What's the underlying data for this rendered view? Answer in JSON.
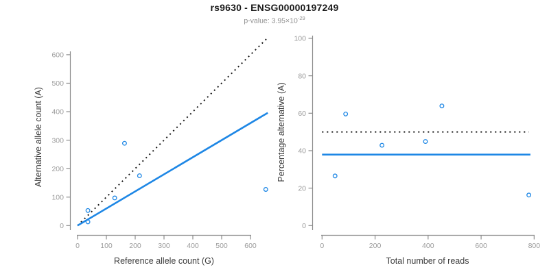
{
  "header": {
    "title": "rs9630 - ENSG00000197249",
    "subtitle_text": "p-value: 3.95×10",
    "subtitle_exponent": "-29"
  },
  "colors": {
    "accent_blue": "#1E87E5",
    "dotted_black": "#1A1A1A",
    "axis_gray": "#8C8C8C",
    "tick_label_gray": "#9B9B9B",
    "axis_title_dark": "#3A3A3A"
  },
  "chart_data": [
    {
      "type": "scatter",
      "panel": "left",
      "xlabel": "Reference allele count (G)",
      "ylabel": "Alternative allele count (A)",
      "xlim": [
        0,
        660
      ],
      "ylim": [
        0,
        660
      ],
      "xticks": [
        0,
        100,
        200,
        300,
        400,
        500,
        600
      ],
      "yticks": [
        0,
        100,
        200,
        300,
        400,
        500,
        600
      ],
      "grid": false,
      "point_color": "#1E87E5",
      "points": [
        {
          "x": 36,
          "y": 53
        },
        {
          "x": 36,
          "y": 13
        },
        {
          "x": 129,
          "y": 97
        },
        {
          "x": 163,
          "y": 289
        },
        {
          "x": 215,
          "y": 175
        },
        {
          "x": 653,
          "y": 127
        }
      ],
      "lines": [
        {
          "name": "identity-line",
          "style": "dotted",
          "color": "#1A1A1A",
          "width": 2,
          "from": [
            0,
            0
          ],
          "to": [
            655,
            655
          ]
        },
        {
          "name": "fit-line",
          "style": "solid",
          "color": "#1E87E5",
          "width": 2.6,
          "from": [
            0,
            0
          ],
          "to": [
            660,
            396
          ]
        }
      ]
    },
    {
      "type": "scatter",
      "panel": "right",
      "xlabel": "Total number of reads",
      "ylabel": "Percentage alternative (A)",
      "xlim": [
        0,
        800
      ],
      "ylim": [
        0,
        100
      ],
      "xticks": [
        0,
        200,
        400,
        600,
        800
      ],
      "yticks": [
        0,
        20,
        40,
        60,
        80,
        100
      ],
      "grid": false,
      "point_color": "#1E87E5",
      "points": [
        {
          "x": 89,
          "y": 59.6
        },
        {
          "x": 49,
          "y": 26.5
        },
        {
          "x": 226,
          "y": 42.9
        },
        {
          "x": 452,
          "y": 63.9
        },
        {
          "x": 390,
          "y": 44.9
        },
        {
          "x": 780,
          "y": 16.3
        }
      ],
      "lines": [
        {
          "name": "reference-line",
          "style": "dotted",
          "color": "#1A1A1A",
          "width": 2,
          "from": [
            0,
            50
          ],
          "to": [
            780,
            50
          ]
        },
        {
          "name": "fit-line",
          "style": "solid",
          "color": "#1E87E5",
          "width": 2.6,
          "from": [
            0,
            37.9
          ],
          "to": [
            786,
            37.9
          ]
        }
      ]
    }
  ]
}
